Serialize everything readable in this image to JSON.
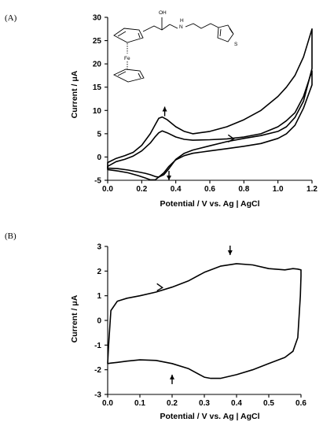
{
  "chart_data": [
    {
      "type": "line",
      "panel_label": "(A)",
      "xlabel": "Potential / V vs. Ag | AgCl",
      "ylabel": "Current / μA",
      "xlim": [
        0.0,
        1.2
      ],
      "ylim": [
        -5,
        30
      ],
      "xticks": [
        "0.0",
        "0.2",
        "0.4",
        "0.6",
        "0.8",
        "1.0",
        "1.2"
      ],
      "yticks": [
        "-5",
        "0",
        "5",
        "10",
        "15",
        "20",
        "25",
        "30"
      ],
      "grid": false,
      "annotations": [
        "arrow-up at peak (0.33, 10.5)",
        "arrow-down at (0.36, -3)",
        "scan-direction arrow near (0.73, 3.8)"
      ],
      "structure_labels": {
        "oh": "OH",
        "nh": "H",
        "n": "N",
        "fe": "Fe",
        "s": "S"
      },
      "series": [
        {
          "x": [
            0,
            0.05,
            0.1,
            0.15,
            0.2,
            0.25,
            0.28,
            0.3,
            0.32,
            0.35,
            0.4,
            0.45,
            0.5,
            0.6,
            0.7,
            0.8,
            0.9,
            1.0,
            1.05,
            1.1,
            1.15,
            1.2,
            1.2,
            1.15,
            1.1,
            1.05,
            1.0,
            0.9,
            0.8,
            0.7,
            0.6,
            0.5,
            0.45,
            0.4,
            0.36,
            0.33,
            0.3,
            0.28,
            0.25,
            0.22,
            0.18,
            0.12,
            0.06,
            0.0
          ],
          "y": [
            -1.2,
            -0.3,
            0.3,
            1.0,
            2.5,
            5.0,
            7.0,
            8.3,
            8.6,
            8.0,
            6.5,
            5.5,
            5.0,
            5.5,
            6.5,
            8.0,
            10.0,
            13.0,
            15.0,
            17.5,
            21.5,
            27.5,
            19.0,
            12.0,
            8.5,
            6.5,
            5.5,
            4.6,
            4.0,
            3.3,
            2.4,
            1.5,
            0.8,
            -0.5,
            -2.5,
            -3.8,
            -4.3,
            -4.2,
            -3.8,
            -3.5,
            -3.2,
            -2.8,
            -2.5,
            -2.4
          ]
        },
        {
          "x": [
            0,
            0.05,
            0.1,
            0.15,
            0.2,
            0.25,
            0.28,
            0.3,
            0.32,
            0.35,
            0.4,
            0.45,
            0.5,
            0.6,
            0.7,
            0.8,
            0.9,
            1.0,
            1.05,
            1.1,
            1.15,
            1.2,
            1.2,
            1.15,
            1.1,
            1.05,
            1.0,
            0.9,
            0.8,
            0.7,
            0.6,
            0.5,
            0.45,
            0.4,
            0.36,
            0.33,
            0.3,
            0.28,
            0.25,
            0.22,
            0.18,
            0.12,
            0.06,
            0.0
          ],
          "y": [
            -2.0,
            -1.0,
            -0.5,
            0.2,
            1.3,
            3.0,
            4.4,
            5.2,
            5.6,
            5.2,
            4.3,
            3.8,
            3.6,
            3.7,
            3.9,
            4.3,
            5.0,
            6.5,
            7.8,
            9.5,
            13.0,
            18.5,
            15.5,
            10.5,
            6.8,
            5.0,
            4.0,
            2.9,
            2.3,
            1.8,
            1.3,
            0.8,
            0.3,
            -0.6,
            -2.0,
            -3.4,
            -4.3,
            -4.9,
            -4.9,
            -4.5,
            -4.0,
            -3.4,
            -3.0,
            -2.7
          ]
        }
      ]
    },
    {
      "type": "line",
      "panel_label": "(B)",
      "xlabel": "Potential / V vs. Ag | AgCl",
      "ylabel": "Current / μA",
      "xlim": [
        0.0,
        0.6
      ],
      "ylim": [
        -3,
        3
      ],
      "xticks": [
        "0.0",
        "0.1",
        "0.2",
        "0.3",
        "0.4",
        "0.5",
        "0.6"
      ],
      "yticks": [
        "-3",
        "-2",
        "-1",
        "0",
        "1",
        "2",
        "3"
      ],
      "grid": false,
      "annotations": [
        "arrow-down at (0.38, 2.75)",
        "arrow-up at (0.2, -2.85)",
        "scan-direction arrow near (0.17, 1.33)"
      ],
      "series": [
        {
          "x": [
            0.0,
            0.003,
            0.01,
            0.03,
            0.06,
            0.1,
            0.15,
            0.2,
            0.25,
            0.3,
            0.35,
            0.4,
            0.45,
            0.5,
            0.55,
            0.575,
            0.59,
            0.6,
            0.6,
            0.598,
            0.59,
            0.575,
            0.55,
            0.5,
            0.45,
            0.4,
            0.35,
            0.32,
            0.3,
            0.25,
            0.2,
            0.15,
            0.1,
            0.06,
            0.03,
            0.01,
            0.0
          ],
          "y": [
            -1.75,
            -1.0,
            0.4,
            0.78,
            0.9,
            1.0,
            1.15,
            1.35,
            1.6,
            1.95,
            2.2,
            2.3,
            2.25,
            2.1,
            2.05,
            2.1,
            2.08,
            2.05,
            1.8,
            1.0,
            -0.7,
            -1.25,
            -1.5,
            -1.75,
            -2.0,
            -2.2,
            -2.35,
            -2.35,
            -2.3,
            -1.95,
            -1.75,
            -1.62,
            -1.6,
            -1.65,
            -1.7,
            -1.73,
            -1.75
          ]
        }
      ]
    }
  ]
}
